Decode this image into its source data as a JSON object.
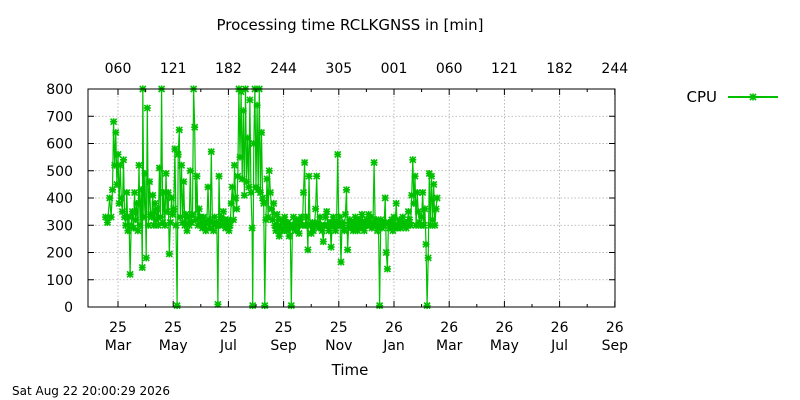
{
  "chart_data": {
    "type": "line",
    "title": "Processing time RCLKGNSS in [min]",
    "xlabel": "Time",
    "ylabel": "",
    "ylim": [
      0,
      800
    ],
    "yticks": [
      0,
      100,
      200,
      300,
      400,
      500,
      600,
      700,
      800
    ],
    "x_bottom_ticks": [
      {
        "day": "25",
        "month": "Mar"
      },
      {
        "day": "25",
        "month": "May"
      },
      {
        "day": "25",
        "month": "Jul"
      },
      {
        "day": "25",
        "month": "Sep"
      },
      {
        "day": "25",
        "month": "Nov"
      },
      {
        "day": "26",
        "month": "Jan"
      },
      {
        "day": "26",
        "month": "Mar"
      },
      {
        "day": "26",
        "month": "May"
      },
      {
        "day": "26",
        "month": "Jul"
      },
      {
        "day": "26",
        "month": "Sep"
      }
    ],
    "x_top_ticks": [
      "060",
      "121",
      "182",
      "244",
      "305",
      "001",
      "060",
      "121",
      "182",
      "244"
    ],
    "grid": true,
    "legend_position": "top-right",
    "series": [
      {
        "name": "CPU",
        "color": "#00c000",
        "marker": "x",
        "x_unit": "months since 25 Mar",
        "points": [
          [
            -0.45,
            330
          ],
          [
            -0.38,
            310
          ],
          [
            -0.3,
            400
          ],
          [
            -0.25,
            330
          ],
          [
            -0.2,
            430
          ],
          [
            -0.16,
            680
          ],
          [
            -0.12,
            520
          ],
          [
            -0.08,
            640
          ],
          [
            -0.04,
            450
          ],
          [
            0.0,
            560
          ],
          [
            0.04,
            380
          ],
          [
            0.08,
            520
          ],
          [
            0.12,
            400
          ],
          [
            0.16,
            350
          ],
          [
            0.2,
            540
          ],
          [
            0.24,
            330
          ],
          [
            0.28,
            300
          ],
          [
            0.32,
            420
          ],
          [
            0.36,
            280
          ],
          [
            0.4,
            330
          ],
          [
            0.44,
            120
          ],
          [
            0.48,
            300
          ],
          [
            0.52,
            350
          ],
          [
            0.56,
            290
          ],
          [
            0.6,
            420
          ],
          [
            0.64,
            320
          ],
          [
            0.68,
            380
          ],
          [
            0.72,
            280
          ],
          [
            0.76,
            520
          ],
          [
            0.8,
            300
          ],
          [
            0.84,
            430
          ],
          [
            0.88,
            145
          ],
          [
            0.9,
            800
          ],
          [
            0.94,
            330
          ],
          [
            0.98,
            490
          ],
          [
            1.02,
            180
          ],
          [
            1.06,
            730
          ],
          [
            1.1,
            300
          ],
          [
            1.14,
            460
          ],
          [
            1.18,
            340
          ],
          [
            1.22,
            330
          ],
          [
            1.26,
            410
          ],
          [
            1.3,
            300
          ],
          [
            1.34,
            380
          ],
          [
            1.38,
            320
          ],
          [
            1.42,
            360
          ],
          [
            1.46,
            300
          ],
          [
            1.5,
            510
          ],
          [
            1.54,
            330
          ],
          [
            1.58,
            800
          ],
          [
            1.62,
            310
          ],
          [
            1.66,
            420
          ],
          [
            1.7,
            300
          ],
          [
            1.74,
            490
          ],
          [
            1.78,
            350
          ],
          [
            1.82,
            420
          ],
          [
            1.86,
            195
          ],
          [
            1.9,
            310
          ],
          [
            1.94,
            400
          ],
          [
            1.98,
            340
          ],
          [
            2.02,
            360
          ],
          [
            2.06,
            580
          ],
          [
            2.1,
            300
          ],
          [
            2.14,
            5
          ],
          [
            2.18,
            560
          ],
          [
            2.22,
            650
          ],
          [
            2.26,
            330
          ],
          [
            2.3,
            520
          ],
          [
            2.34,
            310
          ],
          [
            2.38,
            460
          ],
          [
            2.42,
            300
          ],
          [
            2.46,
            340
          ],
          [
            2.5,
            280
          ],
          [
            2.54,
            330
          ],
          [
            2.58,
            300
          ],
          [
            2.62,
            500
          ],
          [
            2.66,
            310
          ],
          [
            2.7,
            340
          ],
          [
            2.74,
            800
          ],
          [
            2.78,
            660
          ],
          [
            2.82,
            320
          ],
          [
            2.86,
            480
          ],
          [
            2.9,
            300
          ],
          [
            2.94,
            360
          ],
          [
            2.98,
            330
          ],
          [
            3.02,
            310
          ],
          [
            3.06,
            290
          ],
          [
            3.1,
            330
          ],
          [
            3.14,
            300
          ],
          [
            3.18,
            280
          ],
          [
            3.22,
            310
          ],
          [
            3.26,
            440
          ],
          [
            3.3,
            320
          ],
          [
            3.34,
            290
          ],
          [
            3.38,
            570
          ],
          [
            3.42,
            310
          ],
          [
            3.46,
            280
          ],
          [
            3.5,
            330
          ],
          [
            3.54,
            300
          ],
          [
            3.58,
            310
          ],
          [
            3.62,
            10
          ],
          [
            3.66,
            480
          ],
          [
            3.7,
            300
          ],
          [
            3.74,
            330
          ],
          [
            3.78,
            300
          ],
          [
            3.82,
            350
          ],
          [
            3.86,
            320
          ],
          [
            3.9,
            290
          ],
          [
            3.94,
            310
          ],
          [
            3.98,
            320
          ],
          [
            4.02,
            280
          ],
          [
            4.06,
            300
          ],
          [
            4.1,
            380
          ],
          [
            4.14,
            440
          ],
          [
            4.18,
            320
          ],
          [
            4.22,
            520
          ],
          [
            4.26,
            400
          ],
          [
            4.3,
            360
          ],
          [
            4.34,
            480
          ],
          [
            4.38,
            800
          ],
          [
            4.42,
            550
          ],
          [
            4.46,
            790
          ],
          [
            4.5,
            470
          ],
          [
            4.54,
            720
          ],
          [
            4.58,
            410
          ],
          [
            4.62,
            800
          ],
          [
            4.66,
            460
          ],
          [
            4.7,
            620
          ],
          [
            4.74,
            440
          ],
          [
            4.78,
            760
          ],
          [
            4.82,
            420
          ],
          [
            4.86,
            290
          ],
          [
            4.88,
            5
          ],
          [
            4.92,
            600
          ],
          [
            4.96,
            800
          ],
          [
            5.0,
            440
          ],
          [
            5.04,
            740
          ],
          [
            5.08,
            430
          ],
          [
            5.12,
            800
          ],
          [
            5.16,
            420
          ],
          [
            5.2,
            640
          ],
          [
            5.24,
            400
          ],
          [
            5.28,
            380
          ],
          [
            5.32,
            5
          ],
          [
            5.36,
            320
          ],
          [
            5.4,
            470
          ],
          [
            5.44,
            330
          ],
          [
            5.48,
            500
          ],
          [
            5.52,
            420
          ],
          [
            5.56,
            360
          ],
          [
            5.6,
            320
          ],
          [
            5.64,
            380
          ],
          [
            5.68,
            300
          ],
          [
            5.72,
            280
          ],
          [
            5.76,
            340
          ],
          [
            5.8,
            300
          ],
          [
            5.84,
            260
          ],
          [
            5.88,
            320
          ],
          [
            5.92,
            290
          ],
          [
            5.96,
            280
          ],
          [
            6.0,
            310
          ],
          [
            6.04,
            330
          ],
          [
            6.08,
            300
          ],
          [
            6.12,
            280
          ],
          [
            6.16,
            310
          ],
          [
            6.2,
            260
          ],
          [
            6.24,
            300
          ],
          [
            6.28,
            5
          ],
          [
            6.32,
            290
          ],
          [
            6.36,
            330
          ],
          [
            6.4,
            300
          ],
          [
            6.44,
            280
          ],
          [
            6.48,
            320
          ],
          [
            6.52,
            300
          ],
          [
            6.56,
            270
          ],
          [
            6.6,
            310
          ],
          [
            6.64,
            330
          ],
          [
            6.68,
            300
          ],
          [
            6.72,
            420
          ],
          [
            6.76,
            530
          ],
          [
            6.8,
            300
          ],
          [
            6.84,
            330
          ],
          [
            6.88,
            210
          ],
          [
            6.92,
            480
          ],
          [
            6.96,
            300
          ],
          [
            7.0,
            270
          ],
          [
            7.04,
            310
          ],
          [
            7.08,
            280
          ],
          [
            7.12,
            300
          ],
          [
            7.16,
            360
          ],
          [
            7.2,
            480
          ],
          [
            7.24,
            310
          ],
          [
            7.28,
            290
          ],
          [
            7.32,
            330
          ],
          [
            7.36,
            300
          ],
          [
            7.4,
            280
          ],
          [
            7.44,
            240
          ],
          [
            7.48,
            300
          ],
          [
            7.52,
            330
          ],
          [
            7.56,
            350
          ],
          [
            7.6,
            300
          ],
          [
            7.64,
            280
          ],
          [
            7.68,
            310
          ],
          [
            7.72,
            220
          ],
          [
            7.76,
            300
          ],
          [
            7.8,
            330
          ],
          [
            7.84,
            300
          ],
          [
            7.88,
            280
          ],
          [
            7.92,
            310
          ],
          [
            7.96,
            560
          ],
          [
            8.0,
            300
          ],
          [
            8.04,
            330
          ],
          [
            8.08,
            165
          ],
          [
            8.12,
            310
          ],
          [
            8.16,
            300
          ],
          [
            8.2,
            280
          ],
          [
            8.24,
            340
          ],
          [
            8.28,
            430
          ],
          [
            8.32,
            210
          ],
          [
            8.36,
            300
          ],
          [
            8.4,
            320
          ],
          [
            8.44,
            290
          ],
          [
            8.48,
            310
          ],
          [
            8.52,
            280
          ],
          [
            8.56,
            300
          ],
          [
            8.6,
            330
          ],
          [
            8.64,
            300
          ],
          [
            8.68,
            280
          ],
          [
            8.72,
            320
          ],
          [
            8.76,
            300
          ],
          [
            8.8,
            290
          ],
          [
            8.84,
            340
          ],
          [
            8.88,
            310
          ],
          [
            8.92,
            280
          ],
          [
            8.96,
            300
          ],
          [
            9.0,
            320
          ],
          [
            9.04,
            300
          ],
          [
            9.08,
            340
          ],
          [
            9.12,
            300
          ],
          [
            9.16,
            330
          ],
          [
            9.2,
            290
          ],
          [
            9.24,
            310
          ],
          [
            9.28,
            530
          ],
          [
            9.32,
            300
          ],
          [
            9.36,
            320
          ],
          [
            9.4,
            280
          ],
          [
            9.44,
            300
          ],
          [
            9.48,
            5
          ],
          [
            9.52,
            320
          ],
          [
            9.56,
            290
          ],
          [
            9.6,
            310
          ],
          [
            9.64,
            300
          ],
          [
            9.68,
            400
          ],
          [
            9.72,
            200
          ],
          [
            9.76,
            140
          ],
          [
            9.8,
            310
          ],
          [
            9.84,
            290
          ],
          [
            9.88,
            300
          ],
          [
            9.92,
            320
          ],
          [
            9.96,
            280
          ],
          [
            10.0,
            330
          ],
          [
            10.04,
            300
          ],
          [
            10.08,
            380
          ],
          [
            10.12,
            290
          ],
          [
            10.16,
            300
          ],
          [
            10.2,
            320
          ],
          [
            10.24,
            290
          ],
          [
            10.28,
            300
          ],
          [
            10.32,
            330
          ],
          [
            10.36,
            300
          ],
          [
            10.4,
            310
          ],
          [
            10.44,
            290
          ],
          [
            10.48,
            300
          ],
          [
            10.52,
            350
          ],
          [
            10.56,
            320
          ],
          [
            10.6,
            300
          ],
          [
            10.64,
            410
          ],
          [
            10.68,
            540
          ],
          [
            10.72,
            380
          ],
          [
            10.76,
            480
          ],
          [
            10.8,
            300
          ],
          [
            10.84,
            420
          ],
          [
            10.88,
            350
          ],
          [
            10.92,
            310
          ],
          [
            10.96,
            300
          ],
          [
            11.0,
            330
          ],
          [
            11.04,
            420
          ],
          [
            11.08,
            300
          ],
          [
            11.12,
            360
          ],
          [
            11.16,
            230
          ],
          [
            11.2,
            5
          ],
          [
            11.24,
            180
          ],
          [
            11.28,
            490
          ],
          [
            11.32,
            300
          ],
          [
            11.36,
            480
          ],
          [
            11.4,
            320
          ],
          [
            11.44,
            450
          ],
          [
            11.48,
            300
          ],
          [
            11.52,
            360
          ],
          [
            11.56,
            400
          ]
        ]
      }
    ]
  },
  "footer": {
    "timestamp": "Sat Aug 22 20:00:29 2026"
  }
}
